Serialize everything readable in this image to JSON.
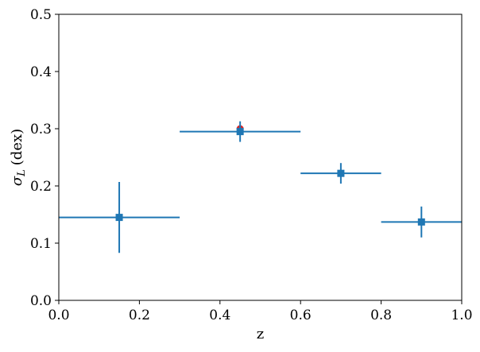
{
  "chart_data": {
    "type": "scatter",
    "xlabel": "z",
    "ylabel_symbol": "σ",
    "ylabel_subscript": "L",
    "ylabel_unit": "(dex)",
    "xlim": [
      0.0,
      1.0
    ],
    "ylim": [
      0.0,
      0.5
    ],
    "xticks": [
      "0.0",
      "0.2",
      "0.4",
      "0.6",
      "0.8",
      "1.0"
    ],
    "yticks": [
      "0.0",
      "0.1",
      "0.2",
      "0.3",
      "0.4",
      "0.5"
    ],
    "grid": false,
    "legend": "none",
    "series": [
      {
        "marker": "circle",
        "color": "#d62728",
        "points": [
          {
            "x": 0.45,
            "y": 0.3
          }
        ]
      },
      {
        "marker": "square",
        "color": "#1f77b4",
        "points": [
          {
            "x": 0.15,
            "y": 0.145,
            "xerr": 0.15,
            "yerr": 0.062
          },
          {
            "x": 0.45,
            "y": 0.295,
            "xerr": 0.15,
            "yerr": 0.018
          },
          {
            "x": 0.7,
            "y": 0.222,
            "xerr": 0.1,
            "yerr": 0.018
          },
          {
            "x": 0.9,
            "y": 0.137,
            "xerr": 0.1,
            "yerr": 0.027
          }
        ]
      }
    ]
  }
}
